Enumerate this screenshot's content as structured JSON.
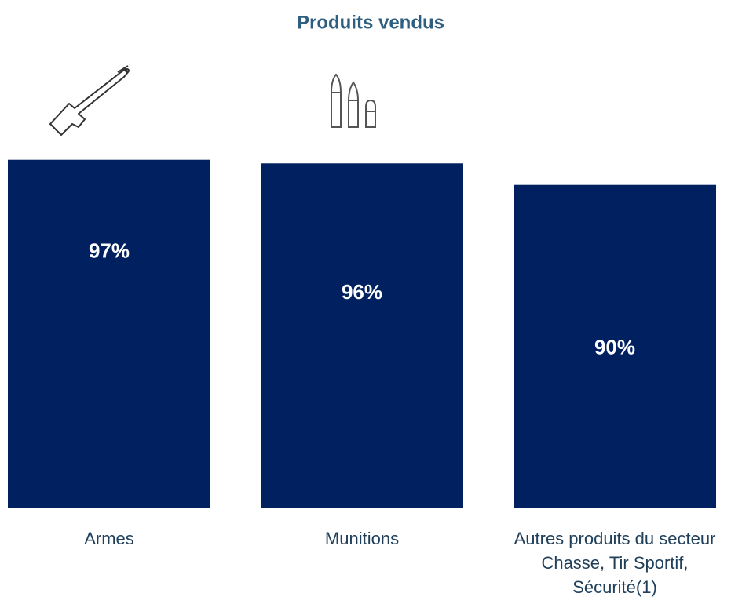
{
  "chart_data": {
    "type": "bar",
    "title": "Produits vendus",
    "categories": [
      "Armes",
      "Munitions",
      "Autres produits du secteur\nChasse, Tir Sportif,\nSécurité(1)"
    ],
    "values": [
      97,
      96,
      90
    ],
    "value_labels": [
      "97%",
      "96%",
      "90%"
    ],
    "color": "#002060",
    "ylim": [
      0,
      100
    ]
  }
}
